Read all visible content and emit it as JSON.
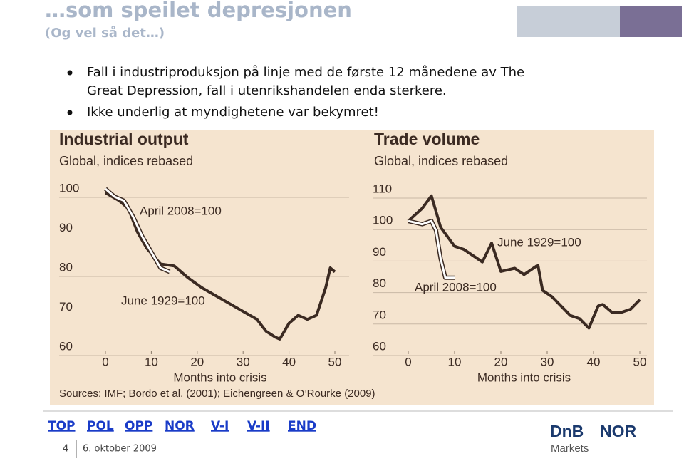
{
  "slide": {
    "title": "…som speilet depresjonen",
    "subtitle": "(Og vel så det…)",
    "bullets": [
      [
        "Fall i industriproduksjon på linje med de første 12 månedene av The",
        "Great Depression, fall i utenrikshandelen enda sterkere."
      ],
      [
        "Ikke underlig at myndighetene var bekymret!"
      ]
    ],
    "source": "Sources: IMF; Bordo et al. (2001); Eichengreen & O’Rourke (2009)",
    "nav": [
      "TOP",
      "POL",
      "OPP",
      "NOR",
      "V-I",
      "V-II",
      "END"
    ],
    "page_number": "4",
    "date": "6. oktober 2009",
    "logo": [
      "DnB",
      "NOR",
      "Markets"
    ]
  },
  "chart_data": [
    {
      "type": "line",
      "title": "Industrial output",
      "subtitle": "Global, indices rebased",
      "xlabel": "Months into crisis",
      "xlim": [
        0,
        50
      ],
      "xticks": [
        0,
        10,
        20,
        30,
        40,
        50
      ],
      "ylim": [
        60,
        100
      ],
      "yticks": [
        60,
        70,
        80,
        90,
        100
      ],
      "grid": true,
      "series": [
        {
          "name": "June 1929=100",
          "color": "#3b2a22",
          "x": [
            0,
            3,
            5,
            7,
            9,
            12,
            15,
            18,
            21,
            24,
            27,
            30,
            33,
            35,
            37,
            38,
            40,
            42,
            44,
            46,
            48,
            49,
            50
          ],
          "values": [
            99,
            97,
            95,
            89,
            85,
            81,
            80.5,
            77.5,
            75,
            73,
            71,
            69,
            67,
            64,
            62.5,
            62,
            66,
            68,
            67,
            68,
            75,
            80,
            79
          ]
        },
        {
          "name": "April 2008=100",
          "color": "#ffffff",
          "x": [
            0,
            2,
            4,
            6,
            8,
            10,
            12,
            14
          ],
          "values": [
            100,
            98,
            97,
            93,
            88,
            84,
            80,
            79
          ]
        }
      ]
    },
    {
      "type": "line",
      "title": "Trade volume",
      "subtitle": "Global, indices rebased",
      "xlabel": "Months into crisis",
      "xlim": [
        0,
        50
      ],
      "xticks": [
        0,
        10,
        20,
        30,
        40,
        50
      ],
      "ylim": [
        60,
        110
      ],
      "yticks": [
        60,
        70,
        80,
        90,
        100,
        110
      ],
      "grid": true,
      "series": [
        {
          "name": "June 1929=100",
          "color": "#3b2a22",
          "x": [
            0,
            3,
            5,
            7,
            8,
            10,
            12,
            14,
            16,
            18,
            20,
            23,
            25,
            28,
            29,
            31,
            33,
            35,
            37,
            39,
            41,
            42,
            44,
            46,
            48,
            50
          ],
          "values": [
            100,
            104,
            108,
            98,
            96,
            92,
            91,
            89,
            87,
            93,
            84,
            85,
            83,
            86,
            78,
            76,
            73,
            70,
            69,
            66,
            73,
            73.5,
            71,
            71,
            72,
            75
          ]
        },
        {
          "name": "April 2008=100",
          "color": "#ffffff",
          "x": [
            0,
            3,
            5,
            6,
            7,
            8,
            10
          ],
          "values": [
            100,
            99,
            100,
            97,
            88,
            82,
            82
          ]
        }
      ]
    }
  ]
}
